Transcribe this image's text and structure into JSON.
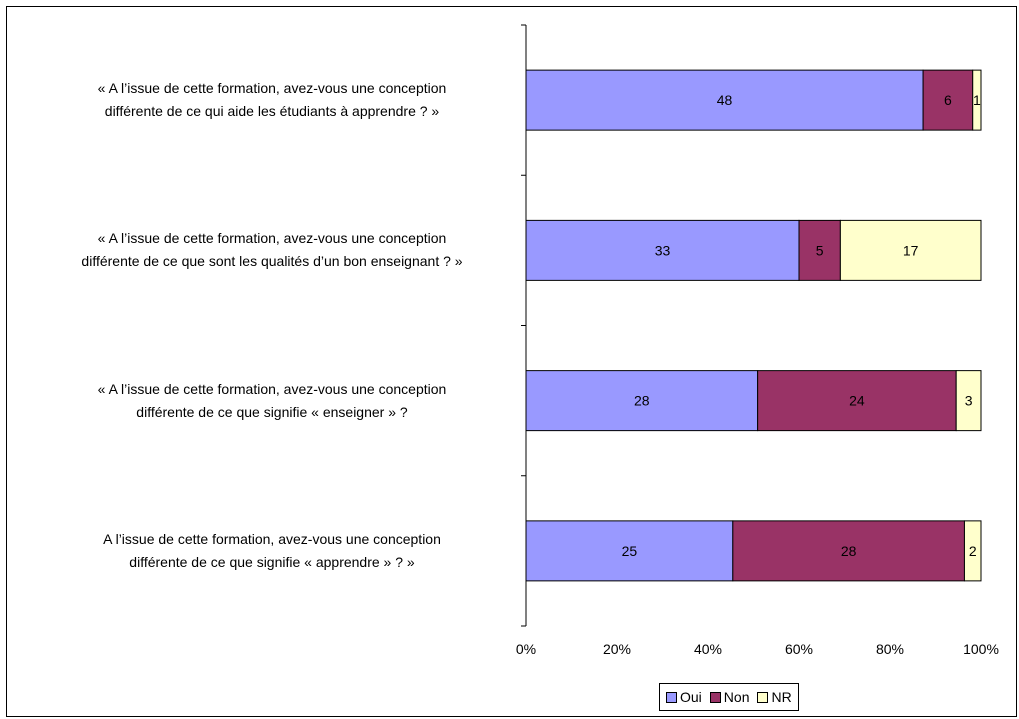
{
  "chart_data": {
    "type": "bar",
    "orientation": "horizontal",
    "stacked": "percent",
    "categories": [
      [
        "« A l’issue de cette formation, avez-vous une conception",
        "différente de ce qui aide les étudiants à apprendre ? »"
      ],
      [
        "« A l’issue de cette formation, avez-vous une conception",
        "différente de ce que sont les qualités d’un bon enseignant ? »"
      ],
      [
        "« A l’issue de cette formation, avez-vous une conception",
        "différente de ce que signifie « enseigner » ?"
      ],
      [
        "A l’issue de cette formation, avez-vous une conception",
        "différente de ce que signifie « apprendre » ? »"
      ]
    ],
    "series": [
      {
        "name": "Oui",
        "color": "#9999FF",
        "values": [
          48,
          33,
          28,
          25
        ]
      },
      {
        "name": "Non",
        "color": "#993366",
        "values": [
          6,
          5,
          24,
          28
        ]
      },
      {
        "name": "NR",
        "color": "#FFFFCC",
        "values": [
          1,
          17,
          3,
          2
        ]
      }
    ],
    "x_ticks": [
      "0%",
      "20%",
      "40%",
      "60%",
      "80%",
      "100%"
    ],
    "xlim": [
      0,
      100
    ],
    "legend_position": "bottom",
    "grid": false
  }
}
